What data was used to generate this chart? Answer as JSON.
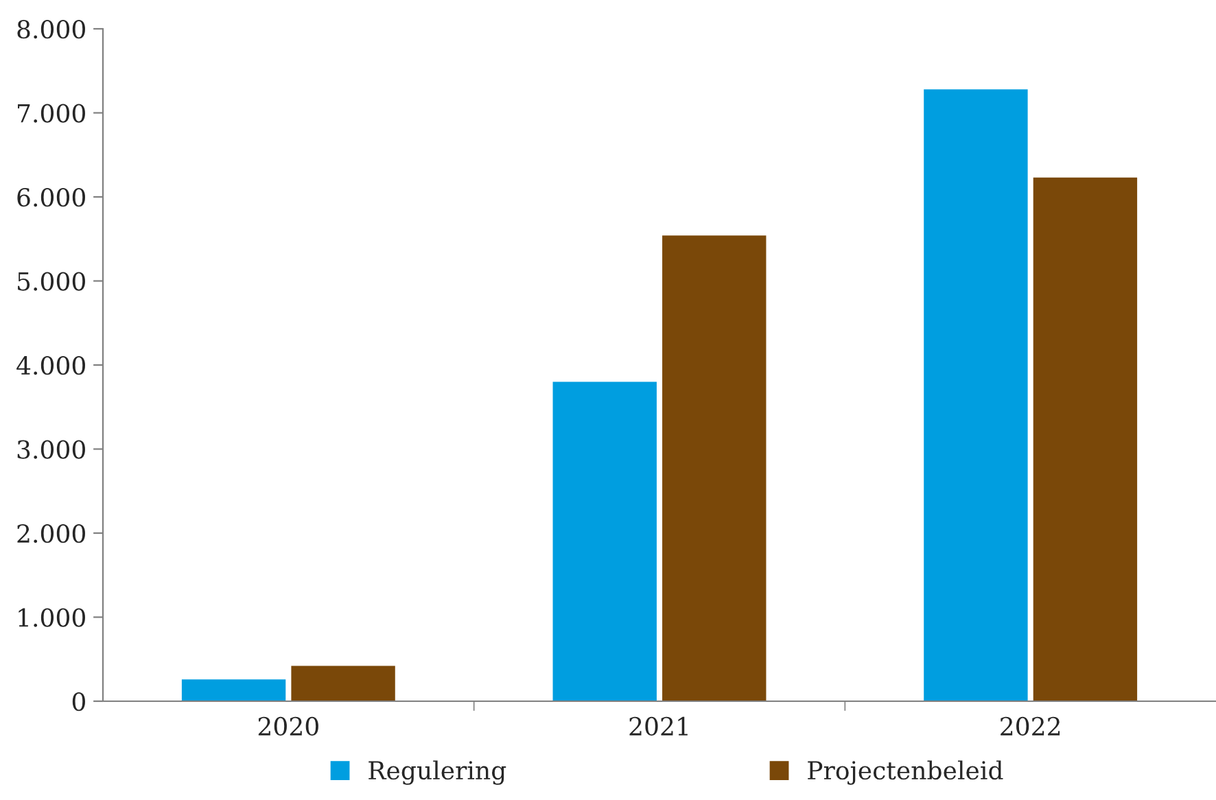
{
  "chart_data": {
    "type": "bar",
    "categories": [
      "2020",
      "2021",
      "2022"
    ],
    "series": [
      {
        "name": "Regulering",
        "color": "#009ee0",
        "values": [
          260,
          3800,
          7280
        ]
      },
      {
        "name": "Projectenbeleid",
        "color": "#7a4809",
        "values": [
          420,
          5540,
          6230
        ]
      }
    ],
    "ylim": [
      0,
      8000
    ],
    "yticks": [
      0,
      {
        "value": 1000,
        "label": "1.000"
      },
      {
        "value": 2000,
        "label": "2.000"
      },
      {
        "value": 3000,
        "label": "3.000"
      },
      {
        "value": 4000,
        "label": "4.000"
      },
      {
        "value": 5000,
        "label": "5.000"
      },
      {
        "value": 6000,
        "label": "6.000"
      },
      {
        "value": 7000,
        "label": "7.000"
      },
      {
        "value": 8000,
        "label": "8.000"
      }
    ],
    "grid": false,
    "legend": "bottom"
  }
}
